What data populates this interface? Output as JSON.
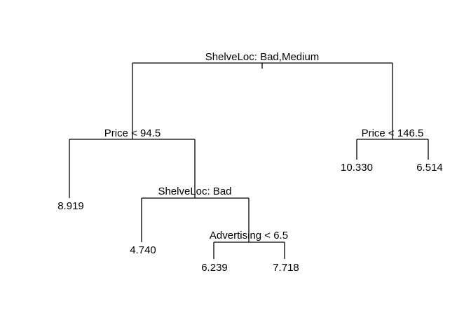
{
  "tree": {
    "root_split": "ShelveLoc: Bad,Medium",
    "left_split": "Price < 94.5",
    "right_split": "Price < 146.5",
    "left_right_split": "ShelveLoc: Bad",
    "left_right_right_split": "Advertising < 6.5",
    "leaves": {
      "ll": "8.919",
      "lrl": "4.740",
      "lrrl": "6.239",
      "lrrr": "7.718",
      "rl": "10.330",
      "rr": "6.514"
    }
  }
}
